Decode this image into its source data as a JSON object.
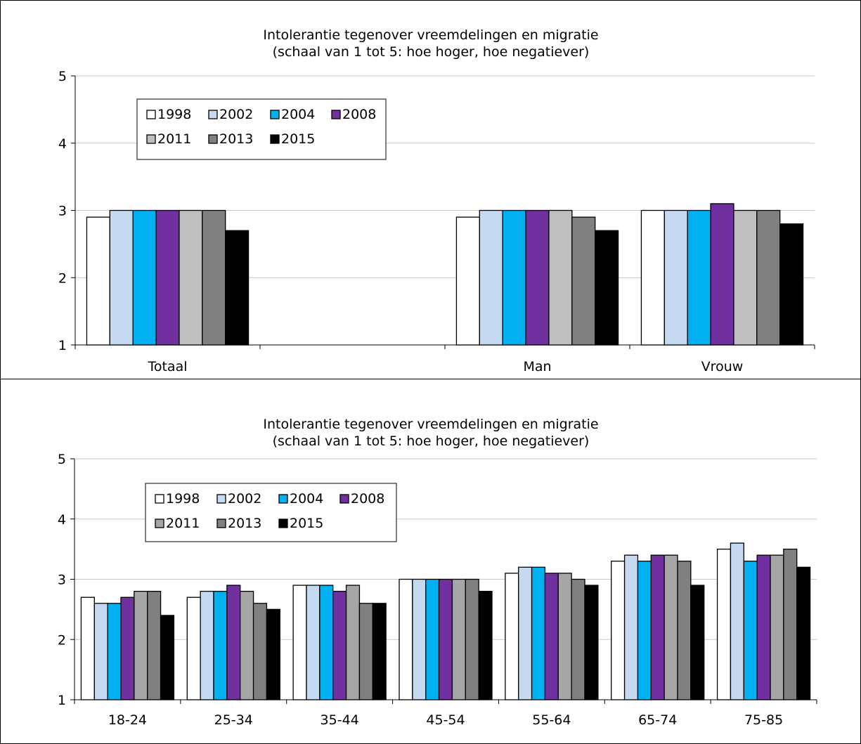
{
  "chart_data": [
    {
      "type": "bar",
      "title": "Intolerantie tegenover vreemdelingen en migratie",
      "subtitle": "(schaal van 1 tot 5: hoe hoger, hoe negatiever)",
      "categories": [
        "Totaal",
        "",
        "Man",
        "Vrouw"
      ],
      "ylim": [
        1,
        5
      ],
      "yticks": [
        1,
        2,
        3,
        4,
        5
      ],
      "grid": true,
      "legend_position": "top-left",
      "series": [
        {
          "name": "1998",
          "color": "#ffffff",
          "values": [
            2.9,
            null,
            2.9,
            3.0
          ]
        },
        {
          "name": "2002",
          "color": "#c5d9f1",
          "values": [
            3.0,
            null,
            3.0,
            3.0
          ]
        },
        {
          "name": "2004",
          "color": "#00b0f0",
          "values": [
            3.0,
            null,
            3.0,
            3.0
          ]
        },
        {
          "name": "2008",
          "color": "#7030a0",
          "values": [
            3.0,
            null,
            3.0,
            3.1
          ]
        },
        {
          "name": "2011",
          "color": "#bfbfbf",
          "values": [
            3.0,
            null,
            3.0,
            3.0
          ]
        },
        {
          "name": "2013",
          "color": "#808080",
          "values": [
            3.0,
            null,
            2.9,
            3.0
          ]
        },
        {
          "name": "2015",
          "color": "#000000",
          "values": [
            2.7,
            null,
            2.7,
            2.8
          ]
        }
      ]
    },
    {
      "type": "bar",
      "title": "Intolerantie tegenover vreemdelingen en migratie",
      "subtitle": "(schaal van 1 tot 5: hoe hoger, hoe negatiever)",
      "categories": [
        "18-24",
        "25-34",
        "35-44",
        "45-54",
        "55-64",
        "65-74",
        "75-85"
      ],
      "ylim": [
        1,
        5
      ],
      "yticks": [
        1,
        2,
        3,
        4,
        5
      ],
      "grid": true,
      "legend_position": "top-left",
      "series": [
        {
          "name": "1998",
          "color": "#ffffff",
          "values": [
            2.7,
            2.7,
            2.9,
            3.0,
            3.1,
            3.3,
            3.5
          ]
        },
        {
          "name": "2002",
          "color": "#c5d9f1",
          "values": [
            2.6,
            2.8,
            2.9,
            3.0,
            3.2,
            3.4,
            3.6
          ]
        },
        {
          "name": "2004",
          "color": "#00b0f0",
          "values": [
            2.6,
            2.8,
            2.9,
            3.0,
            3.2,
            3.3,
            3.3
          ]
        },
        {
          "name": "2008",
          "color": "#7030a0",
          "values": [
            2.7,
            2.9,
            2.8,
            3.0,
            3.1,
            3.4,
            3.4
          ]
        },
        {
          "name": "2011",
          "color": "#a6a6a6",
          "values": [
            2.8,
            2.8,
            2.9,
            3.0,
            3.1,
            3.4,
            3.4
          ]
        },
        {
          "name": "2013",
          "color": "#808080",
          "values": [
            2.8,
            2.6,
            2.6,
            3.0,
            3.0,
            3.3,
            3.5
          ]
        },
        {
          "name": "2015",
          "color": "#000000",
          "values": [
            2.4,
            2.5,
            2.6,
            2.8,
            2.9,
            2.9,
            3.2
          ]
        }
      ]
    }
  ]
}
